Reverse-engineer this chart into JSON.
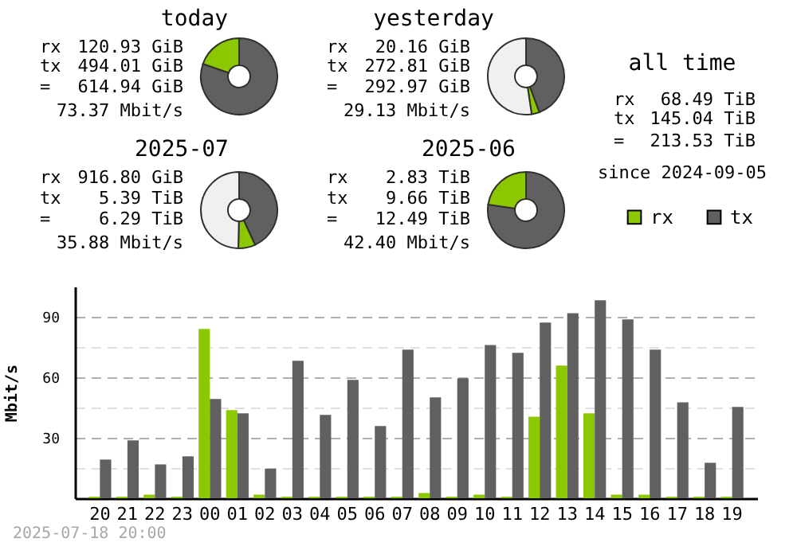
{
  "chart_data": [
    {
      "type": "donut",
      "title": "today",
      "categories": [
        null,
        null
      ],
      "values": [
        80.33,
        19.67
      ],
      "colors": [
        "#606060",
        "#8cc800"
      ],
      "annotations": [
        "rx",
        "120.93 GiB",
        "tx",
        "494.01 GiB",
        "=",
        "614.94 GiB",
        "73.37 Mbit/s"
      ]
    },
    {
      "type": "donut",
      "title": "yesterday",
      "categories": [
        null,
        null,
        null
      ],
      "values": [
        44.36,
        3.28,
        52.36
      ],
      "colors": [
        "#606060",
        "#8cc800",
        "#f0f0f0"
      ],
      "annotations": [
        "rx",
        "20.16 GiB",
        "tx",
        "272.81 GiB",
        "=",
        "292.97 GiB",
        "29.13 Mbit/s"
      ]
    },
    {
      "type": "other",
      "title": "all time",
      "annotations": [
        "rx",
        "68.49 TiB",
        "tx",
        "145.04 TiB",
        "=",
        "213.53 TiB",
        "since 2024-09-05"
      ]
    },
    {
      "type": "donut",
      "title": "2025-07",
      "categories": [
        null,
        null,
        null
      ],
      "values": [
        43.15,
        7.17,
        49.68
      ],
      "colors": [
        "#606060",
        "#8cc800",
        "#f0f0f0"
      ],
      "annotations": [
        "rx",
        "916.80 GiB",
        "tx",
        "5.39 TiB",
        "=",
        "6.29 TiB",
        "35.88 Mbit/s"
      ]
    },
    {
      "type": "donut",
      "title": "2025-06",
      "categories": [
        null,
        null
      ],
      "values": [
        77.34,
        22.66
      ],
      "colors": [
        "#606060",
        "#8cc800"
      ],
      "annotations": [
        "rx",
        "2.83 TiB",
        "tx",
        "9.66 TiB",
        "=",
        "12.49 TiB",
        "42.40 Mbit/s"
      ]
    },
    {
      "type": "bar",
      "ylabel": "Mbit/s",
      "categories": [
        "20",
        "21",
        "22",
        "23",
        "00",
        "01",
        "02",
        "03",
        "04",
        "05",
        "06",
        "07",
        "08",
        "09",
        "10",
        "11",
        "12",
        "13",
        "14",
        "15",
        "16",
        "17",
        "18",
        "19"
      ],
      "series": [
        {
          "name": "rx",
          "color": "#8cc800",
          "values": [
            0.8,
            0.8,
            1.8,
            0.8,
            84,
            43.7,
            1.8,
            0.8,
            0.8,
            0.8,
            0.8,
            0.8,
            2.6,
            0.8,
            1.8,
            0.8,
            40.5,
            65.8,
            42.1,
            1.8,
            1.8,
            0.8,
            0.8,
            0.8
          ]
        },
        {
          "name": "tx",
          "color": "#606060",
          "values": [
            19.2,
            28.7,
            16.8,
            20.8,
            49.2,
            42.1,
            14.7,
            68.2,
            41.3,
            58.7,
            35.8,
            73.7,
            50,
            59.5,
            76,
            72.1,
            87.1,
            91.8,
            98.2,
            88.7,
            73.7,
            47.6,
            17.6,
            45.3
          ]
        }
      ],
      "ylim": [
        0,
        105
      ],
      "yticks": [
        {
          "value": 0,
          "label": null
        },
        {
          "value": 15,
          "label": null
        },
        30,
        {
          "value": 45,
          "label": null
        },
        60,
        {
          "value": 75,
          "label": null
        },
        90
      ],
      "grid": "y",
      "legend": "top right",
      "annotations": [
        "2025-07-18 20:00"
      ]
    }
  ]
}
